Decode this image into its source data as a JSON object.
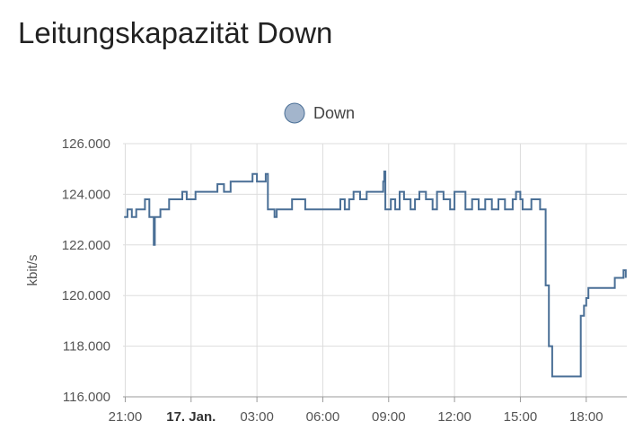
{
  "page": {
    "title": "Leitungskapazität Down"
  },
  "colors": {
    "series": "#4a6f96",
    "legend_fill": "#a3b5cc",
    "grid": "#dddddd"
  },
  "chart_data": {
    "type": "line",
    "title": "",
    "xlabel": "",
    "ylabel": "kbit/s",
    "ylim": [
      116000,
      126000
    ],
    "y_ticks": [
      116000,
      118000,
      120000,
      122000,
      124000,
      126000
    ],
    "y_tick_labels": [
      "116.000",
      "118.000",
      "120.000",
      "122.000",
      "124.000",
      "126.000"
    ],
    "x_range_hours": [
      20.9,
      43.85
    ],
    "x_ticks": [
      {
        "hour": 21,
        "label": "21:00",
        "bold": false
      },
      {
        "hour": 24,
        "label": "17. Jan.",
        "bold": true
      },
      {
        "hour": 27,
        "label": "03:00",
        "bold": false
      },
      {
        "hour": 30,
        "label": "06:00",
        "bold": false
      },
      {
        "hour": 33,
        "label": "09:00",
        "bold": false
      },
      {
        "hour": 36,
        "label": "12:00",
        "bold": false
      },
      {
        "hour": 39,
        "label": "15:00",
        "bold": false
      },
      {
        "hour": 42,
        "label": "18:00",
        "bold": false
      }
    ],
    "legend": {
      "position": "top-center",
      "entries": [
        "Down"
      ]
    },
    "grid": true,
    "series": [
      {
        "name": "Down",
        "points": [
          [
            20.95,
            123100
          ],
          [
            21.1,
            123400
          ],
          [
            21.3,
            123100
          ],
          [
            21.5,
            123400
          ],
          [
            21.7,
            123400
          ],
          [
            21.9,
            123800
          ],
          [
            22.1,
            123100
          ],
          [
            22.3,
            122000
          ],
          [
            22.35,
            123100
          ],
          [
            22.6,
            123400
          ],
          [
            23.0,
            123800
          ],
          [
            23.6,
            124100
          ],
          [
            23.8,
            123800
          ],
          [
            24.2,
            124100
          ],
          [
            25.0,
            124100
          ],
          [
            25.2,
            124400
          ],
          [
            25.5,
            124100
          ],
          [
            25.8,
            124500
          ],
          [
            26.6,
            124500
          ],
          [
            26.8,
            124800
          ],
          [
            27.0,
            124500
          ],
          [
            27.4,
            124800
          ],
          [
            27.5,
            123400
          ],
          [
            27.8,
            123100
          ],
          [
            27.9,
            123400
          ],
          [
            28.5,
            123400
          ],
          [
            28.6,
            123800
          ],
          [
            29.1,
            123800
          ],
          [
            29.2,
            123400
          ],
          [
            30.7,
            123400
          ],
          [
            30.8,
            123800
          ],
          [
            31.0,
            123400
          ],
          [
            31.2,
            123800
          ],
          [
            31.4,
            124100
          ],
          [
            31.7,
            123800
          ],
          [
            32.0,
            124100
          ],
          [
            32.7,
            124100
          ],
          [
            32.75,
            124500
          ],
          [
            32.8,
            124900
          ],
          [
            32.85,
            123400
          ],
          [
            33.1,
            123800
          ],
          [
            33.3,
            123400
          ],
          [
            33.5,
            124100
          ],
          [
            33.7,
            123800
          ],
          [
            34.0,
            123400
          ],
          [
            34.2,
            123800
          ],
          [
            34.4,
            124100
          ],
          [
            34.7,
            123800
          ],
          [
            35.0,
            123400
          ],
          [
            35.2,
            124100
          ],
          [
            35.5,
            123800
          ],
          [
            35.8,
            123400
          ],
          [
            36.0,
            124100
          ],
          [
            36.4,
            124100
          ],
          [
            36.5,
            123400
          ],
          [
            36.8,
            123800
          ],
          [
            37.1,
            123400
          ],
          [
            37.4,
            123800
          ],
          [
            37.7,
            123400
          ],
          [
            38.0,
            123800
          ],
          [
            38.3,
            123400
          ],
          [
            38.5,
            123400
          ],
          [
            38.65,
            123800
          ],
          [
            38.8,
            124100
          ],
          [
            39.0,
            123800
          ],
          [
            39.1,
            123400
          ],
          [
            39.5,
            123800
          ],
          [
            39.9,
            123400
          ],
          [
            40.1,
            123400
          ],
          [
            40.15,
            120400
          ],
          [
            40.3,
            118000
          ],
          [
            40.45,
            116800
          ],
          [
            41.7,
            116800
          ],
          [
            41.75,
            119200
          ],
          [
            41.9,
            119600
          ],
          [
            42.0,
            119900
          ],
          [
            42.1,
            120300
          ],
          [
            43.2,
            120300
          ],
          [
            43.3,
            120700
          ],
          [
            43.6,
            120700
          ],
          [
            43.7,
            121000
          ],
          [
            43.8,
            120700
          ]
        ]
      }
    ]
  }
}
